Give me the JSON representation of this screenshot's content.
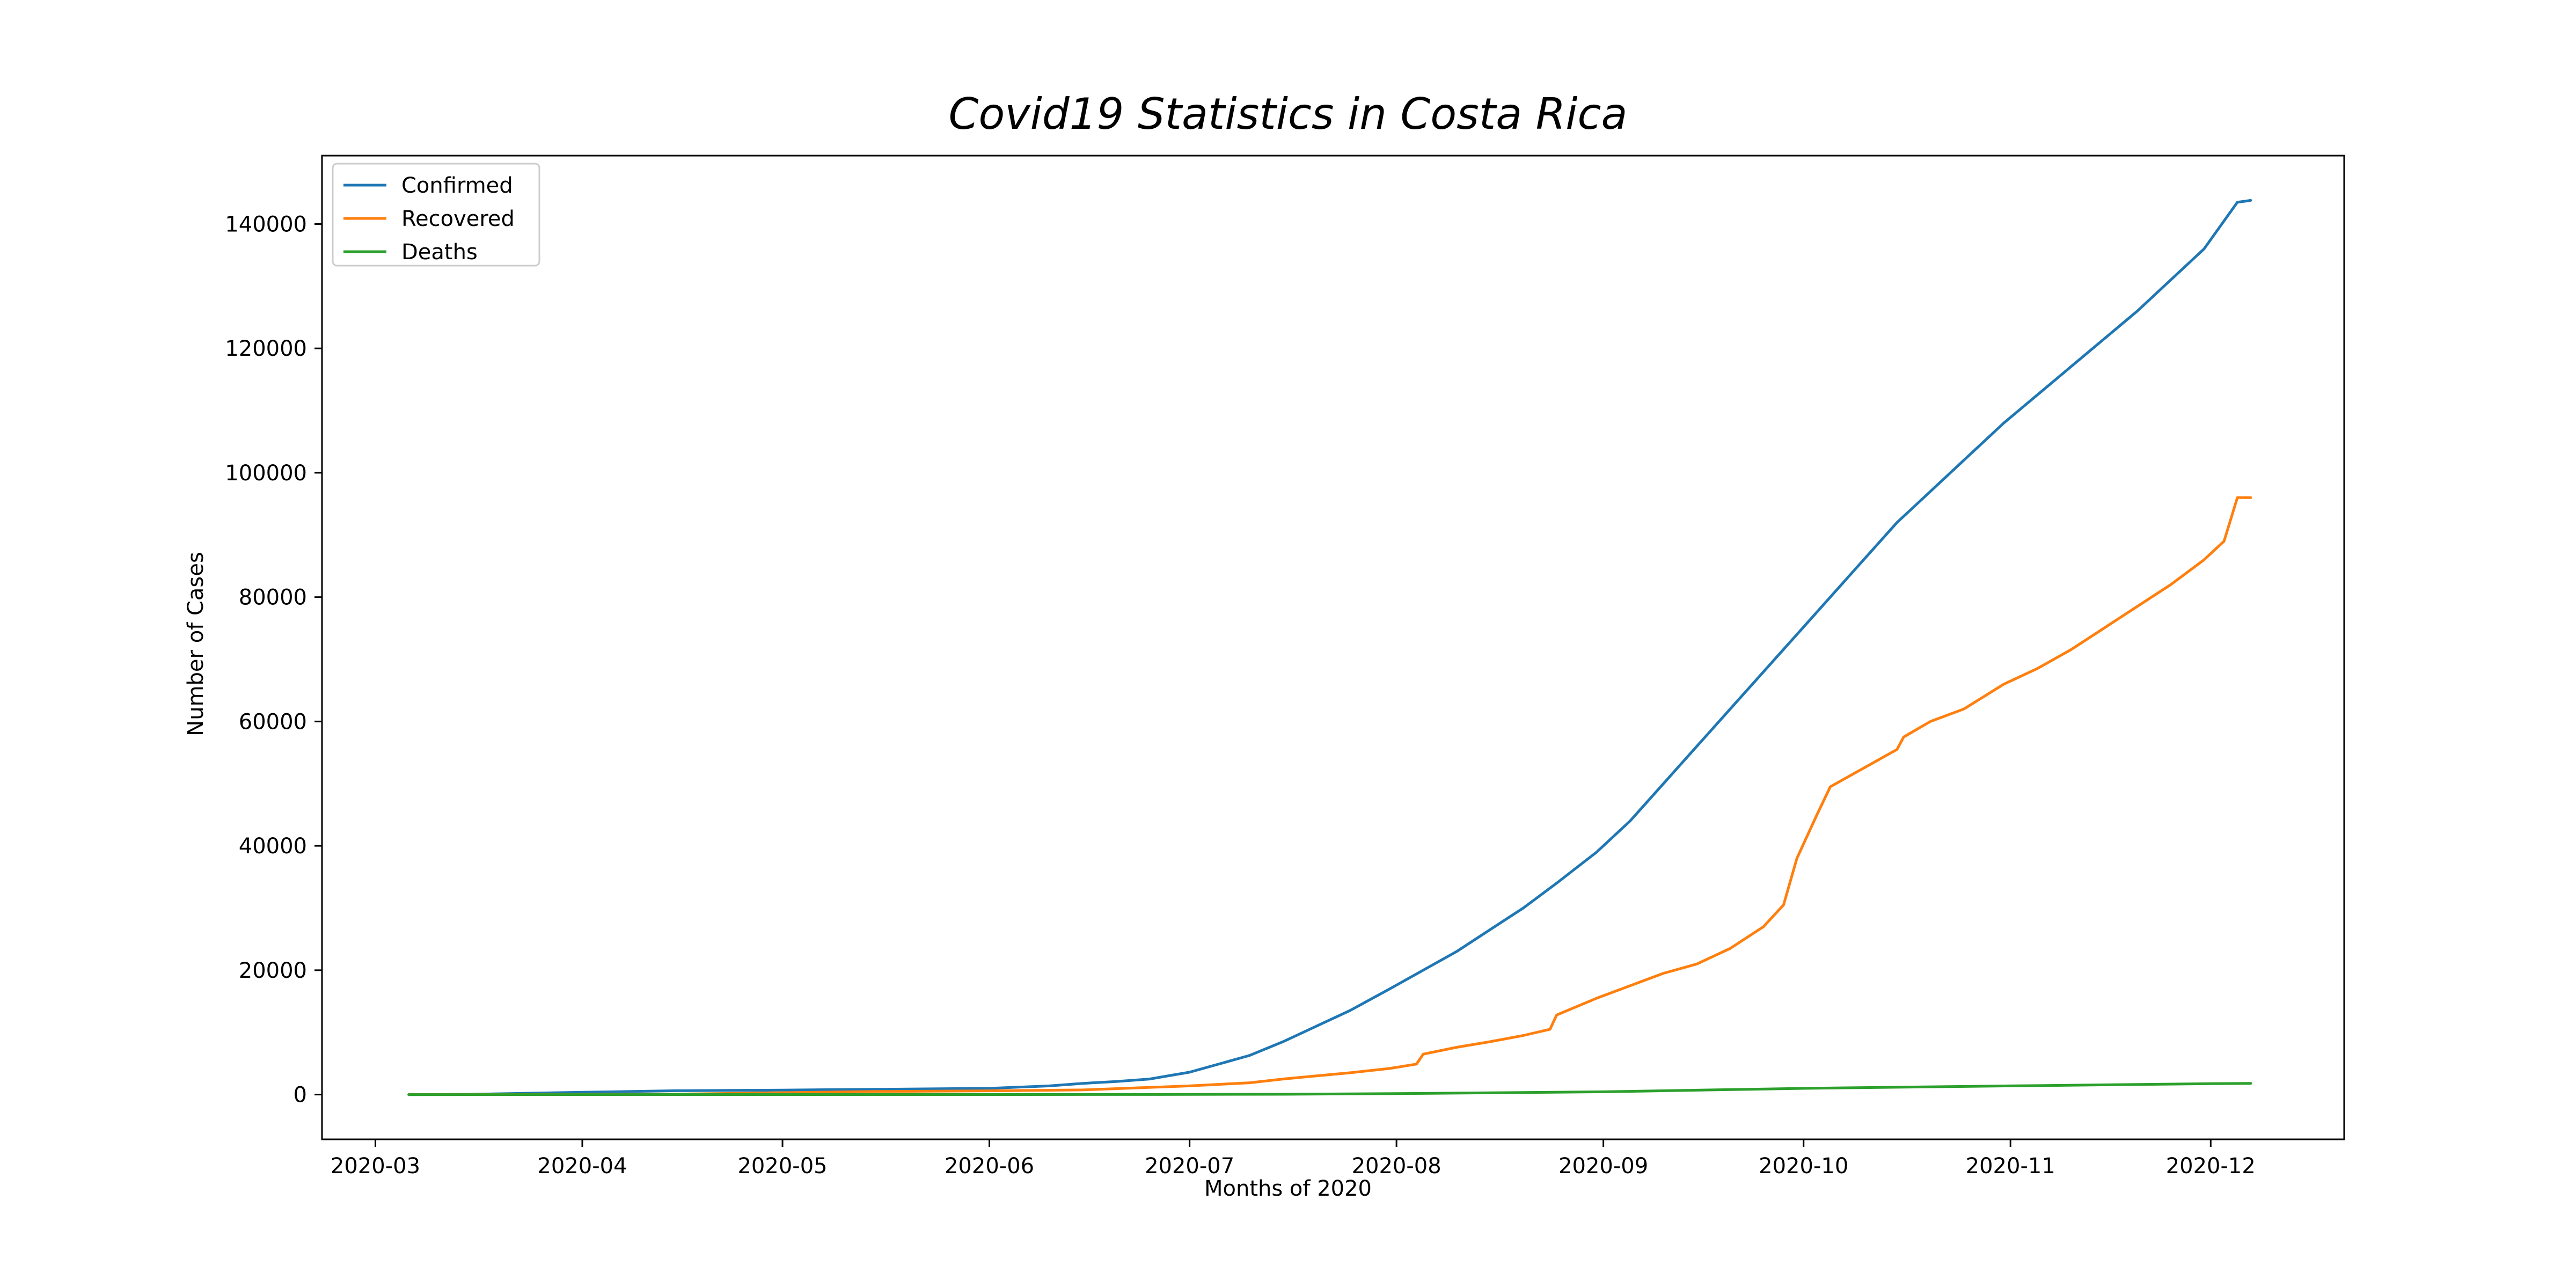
{
  "chart_data": {
    "type": "line",
    "title": "Covid19 Statistics in Costa Rica",
    "xlabel": "Months of 2020",
    "ylabel": "Number of Cases",
    "x_ticks": [
      "2020-03",
      "2020-04",
      "2020-05",
      "2020-06",
      "2020-07",
      "2020-08",
      "2020-09",
      "2020-10",
      "2020-11",
      "2020-12"
    ],
    "y_ticks": [
      0,
      20000,
      40000,
      60000,
      80000,
      100000,
      120000,
      140000
    ],
    "xlim": [
      "2020-02-22",
      "2020-12-21"
    ],
    "ylim": [
      -7200,
      151000
    ],
    "grid": false,
    "legend_position": "upper-left",
    "series": [
      {
        "name": "Confirmed",
        "color": "#1f77b4",
        "points": [
          [
            "2020-03-06",
            1
          ],
          [
            "2020-03-15",
            30
          ],
          [
            "2020-03-31",
            350
          ],
          [
            "2020-04-15",
            620
          ],
          [
            "2020-05-01",
            720
          ],
          [
            "2020-05-15",
            840
          ],
          [
            "2020-06-01",
            1000
          ],
          [
            "2020-06-10",
            1400
          ],
          [
            "2020-06-15",
            1800
          ],
          [
            "2020-06-20",
            2100
          ],
          [
            "2020-06-25",
            2500
          ],
          [
            "2020-07-01",
            3600
          ],
          [
            "2020-07-05",
            4800
          ],
          [
            "2020-07-10",
            6300
          ],
          [
            "2020-07-15",
            8500
          ],
          [
            "2020-07-20",
            11000
          ],
          [
            "2020-07-25",
            13500
          ],
          [
            "2020-07-31",
            17000
          ],
          [
            "2020-08-05",
            20000
          ],
          [
            "2020-08-10",
            23000
          ],
          [
            "2020-08-15",
            26500
          ],
          [
            "2020-08-20",
            30000
          ],
          [
            "2020-08-25",
            34000
          ],
          [
            "2020-08-31",
            39000
          ],
          [
            "2020-09-05",
            44000
          ],
          [
            "2020-09-10",
            50000
          ],
          [
            "2020-09-15",
            56000
          ],
          [
            "2020-09-20",
            62000
          ],
          [
            "2020-09-25",
            68000
          ],
          [
            "2020-09-30",
            74000
          ],
          [
            "2020-10-05",
            80000
          ],
          [
            "2020-10-10",
            86000
          ],
          [
            "2020-10-15",
            92000
          ],
          [
            "2020-10-20",
            97000
          ],
          [
            "2020-10-25",
            102000
          ],
          [
            "2020-10-31",
            108000
          ],
          [
            "2020-11-05",
            112500
          ],
          [
            "2020-11-10",
            117000
          ],
          [
            "2020-11-15",
            121500
          ],
          [
            "2020-11-20",
            126000
          ],
          [
            "2020-11-25",
            131000
          ],
          [
            "2020-11-30",
            136000
          ],
          [
            "2020-12-05",
            143500
          ],
          [
            "2020-12-07",
            143800
          ]
        ]
      },
      {
        "name": "Recovered",
        "color": "#ff7f0e",
        "points": [
          [
            "2020-03-06",
            0
          ],
          [
            "2020-03-31",
            10
          ],
          [
            "2020-04-15",
            70
          ],
          [
            "2020-05-01",
            300
          ],
          [
            "2020-05-15",
            500
          ],
          [
            "2020-06-01",
            600
          ],
          [
            "2020-06-15",
            750
          ],
          [
            "2020-07-01",
            1400
          ],
          [
            "2020-07-10",
            1900
          ],
          [
            "2020-07-15",
            2500
          ],
          [
            "2020-07-20",
            3000
          ],
          [
            "2020-07-25",
            3500
          ],
          [
            "2020-07-31",
            4200
          ],
          [
            "2020-08-04",
            4900
          ],
          [
            "2020-08-05",
            6500
          ],
          [
            "2020-08-10",
            7600
          ],
          [
            "2020-08-15",
            8500
          ],
          [
            "2020-08-20",
            9500
          ],
          [
            "2020-08-24",
            10500
          ],
          [
            "2020-08-25",
            12800
          ],
          [
            "2020-08-31",
            15500
          ],
          [
            "2020-09-05",
            17500
          ],
          [
            "2020-09-10",
            19500
          ],
          [
            "2020-09-15",
            21000
          ],
          [
            "2020-09-20",
            23500
          ],
          [
            "2020-09-25",
            27000
          ],
          [
            "2020-09-28",
            30500
          ],
          [
            "2020-09-30",
            38000
          ],
          [
            "2020-10-03",
            45000
          ],
          [
            "2020-10-05",
            49500
          ],
          [
            "2020-10-10",
            52500
          ],
          [
            "2020-10-15",
            55500
          ],
          [
            "2020-10-16",
            57500
          ],
          [
            "2020-10-20",
            60000
          ],
          [
            "2020-10-25",
            62000
          ],
          [
            "2020-10-31",
            66000
          ],
          [
            "2020-11-05",
            68500
          ],
          [
            "2020-11-10",
            71500
          ],
          [
            "2020-11-15",
            75000
          ],
          [
            "2020-11-20",
            78500
          ],
          [
            "2020-11-25",
            82000
          ],
          [
            "2020-11-30",
            86000
          ],
          [
            "2020-12-03",
            89000
          ],
          [
            "2020-12-05",
            96000
          ],
          [
            "2020-12-07",
            96000
          ]
        ]
      },
      {
        "name": "Deaths",
        "color": "#2ca02c",
        "points": [
          [
            "2020-03-06",
            0
          ],
          [
            "2020-04-01",
            2
          ],
          [
            "2020-05-01",
            6
          ],
          [
            "2020-06-01",
            10
          ],
          [
            "2020-07-01",
            20
          ],
          [
            "2020-07-15",
            50
          ],
          [
            "2020-08-01",
            150
          ],
          [
            "2020-09-01",
            450
          ],
          [
            "2020-10-01",
            1000
          ],
          [
            "2020-11-01",
            1400
          ],
          [
            "2020-12-01",
            1750
          ],
          [
            "2020-12-07",
            1800
          ]
        ]
      }
    ]
  }
}
